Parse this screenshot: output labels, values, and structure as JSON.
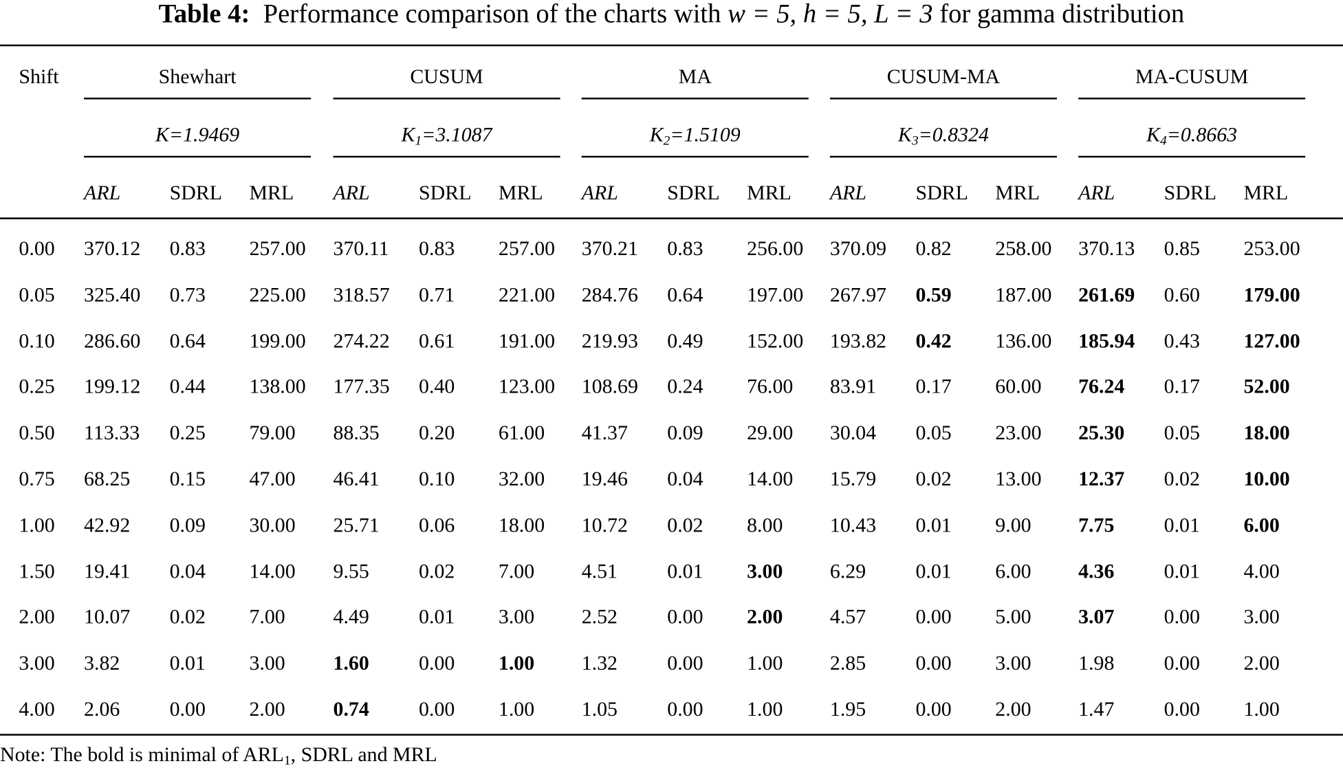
{
  "title": {
    "label": "Table 4:",
    "text_pre": "Performance comparison of the charts with ",
    "math": "w = 5, h = 5, L = 3",
    "text_post": " for gamma distribution"
  },
  "header": {
    "shift": "Shift",
    "groups": [
      {
        "name": "Shewhart",
        "k_sym": "K",
        "k_sub": "",
        "k_val": "=1.9469"
      },
      {
        "name": "CUSUM",
        "k_sym": "K",
        "k_sub": "1",
        "k_val": "=3.1087"
      },
      {
        "name": "MA",
        "k_sym": "K",
        "k_sub": "2",
        "k_val": "=1.5109"
      },
      {
        "name": "CUSUM-MA",
        "k_sym": "K",
        "k_sub": "3",
        "k_val": "=0.8324"
      },
      {
        "name": "MA-CUSUM",
        "k_sym": "K",
        "k_sub": "4",
        "k_val": "=0.8663"
      }
    ],
    "metrics": [
      "ARL",
      "SDRL",
      "MRL"
    ]
  },
  "rows": [
    {
      "shift": "0.00",
      "values": [
        "370.12",
        "0.83",
        "257.00",
        "370.11",
        "0.83",
        "257.00",
        "370.21",
        "0.83",
        "256.00",
        "370.09",
        "0.82",
        "258.00",
        "370.13",
        "0.85",
        "253.00"
      ],
      "bold": []
    },
    {
      "shift": "0.05",
      "values": [
        "325.40",
        "0.73",
        "225.00",
        "318.57",
        "0.71",
        "221.00",
        "284.76",
        "0.64",
        "197.00",
        "267.97",
        "0.59",
        "187.00",
        "261.69",
        "0.60",
        "179.00"
      ],
      "bold": [
        10,
        12,
        14
      ]
    },
    {
      "shift": "0.10",
      "values": [
        "286.60",
        "0.64",
        "199.00",
        "274.22",
        "0.61",
        "191.00",
        "219.93",
        "0.49",
        "152.00",
        "193.82",
        "0.42",
        "136.00",
        "185.94",
        "0.43",
        "127.00"
      ],
      "bold": [
        10,
        12,
        14
      ]
    },
    {
      "shift": "0.25",
      "values": [
        "199.12",
        "0.44",
        "138.00",
        "177.35",
        "0.40",
        "123.00",
        "108.69",
        "0.24",
        "76.00",
        "83.91",
        "0.17",
        "60.00",
        "76.24",
        "0.17",
        "52.00"
      ],
      "bold": [
        12,
        14
      ]
    },
    {
      "shift": "0.50",
      "values": [
        "113.33",
        "0.25",
        "79.00",
        "88.35",
        "0.20",
        "61.00",
        "41.37",
        "0.09",
        "29.00",
        "30.04",
        "0.05",
        "23.00",
        "25.30",
        "0.05",
        "18.00"
      ],
      "bold": [
        12,
        14
      ]
    },
    {
      "shift": "0.75",
      "values": [
        "68.25",
        "0.15",
        "47.00",
        "46.41",
        "0.10",
        "32.00",
        "19.46",
        "0.04",
        "14.00",
        "15.79",
        "0.02",
        "13.00",
        "12.37",
        "0.02",
        "10.00"
      ],
      "bold": [
        12,
        14
      ]
    },
    {
      "shift": "1.00",
      "values": [
        "42.92",
        "0.09",
        "30.00",
        "25.71",
        "0.06",
        "18.00",
        "10.72",
        "0.02",
        "8.00",
        "10.43",
        "0.01",
        "9.00",
        "7.75",
        "0.01",
        "6.00"
      ],
      "bold": [
        12,
        14
      ]
    },
    {
      "shift": "1.50",
      "values": [
        "19.41",
        "0.04",
        "14.00",
        "9.55",
        "0.02",
        "7.00",
        "4.51",
        "0.01",
        "3.00",
        "6.29",
        "0.01",
        "6.00",
        "4.36",
        "0.01",
        "4.00"
      ],
      "bold": [
        8,
        12
      ]
    },
    {
      "shift": "2.00",
      "values": [
        "10.07",
        "0.02",
        "7.00",
        "4.49",
        "0.01",
        "3.00",
        "2.52",
        "0.00",
        "2.00",
        "4.57",
        "0.00",
        "5.00",
        "3.07",
        "0.00",
        "3.00"
      ],
      "bold": [
        8,
        12
      ]
    },
    {
      "shift": "3.00",
      "values": [
        "3.82",
        "0.01",
        "3.00",
        "1.60",
        "0.00",
        "1.00",
        "1.32",
        "0.00",
        "1.00",
        "2.85",
        "0.00",
        "3.00",
        "1.98",
        "0.00",
        "2.00"
      ],
      "bold": [
        3,
        5
      ]
    },
    {
      "shift": "4.00",
      "values": [
        "2.06",
        "0.00",
        "2.00",
        "0.74",
        "0.00",
        "1.00",
        "1.05",
        "0.00",
        "1.00",
        "1.95",
        "0.00",
        "2.00",
        "1.47",
        "0.00",
        "1.00"
      ],
      "bold": [
        3
      ]
    }
  ],
  "note": {
    "pre": "Note: The bold is minimal of ARL",
    "sub": "1",
    "post": ", SDRL and MRL"
  }
}
